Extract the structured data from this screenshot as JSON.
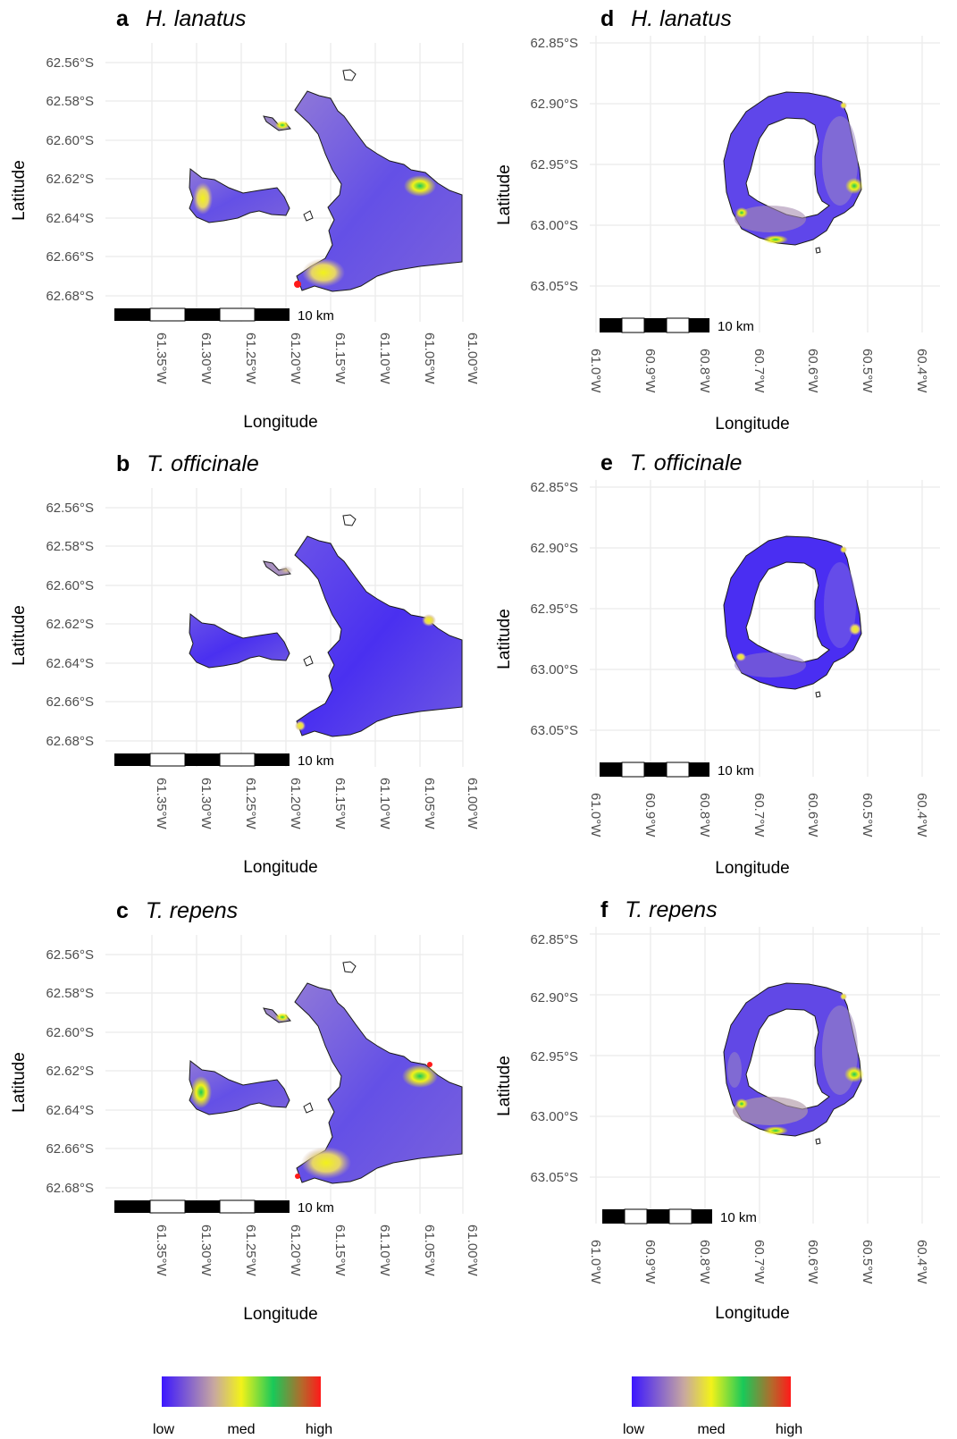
{
  "figure": {
    "panels": [
      {
        "letter": "a",
        "species": "H. lanatus",
        "map": "livingston",
        "ylabels": [
          "62.56°S",
          "62.58°S",
          "62.60°S",
          "62.62°S",
          "62.64°S",
          "62.66°S",
          "62.68°S"
        ],
        "xlabels": [
          "61.35°W",
          "61.30°W",
          "61.25°W",
          "61.20°W",
          "61.15°W",
          "61.10°W",
          "61.05°W",
          "61.00°W"
        ],
        "xlabel": "Longitude",
        "ylabel": "Latitude",
        "scalebar": "10 km",
        "pattern": "strong"
      },
      {
        "letter": "b",
        "species": "T. officinale",
        "map": "livingston",
        "ylabels": [
          "62.56°S",
          "62.58°S",
          "62.60°S",
          "62.62°S",
          "62.64°S",
          "62.66°S",
          "62.68°S"
        ],
        "xlabels": [
          "61.35°W",
          "61.30°W",
          "61.25°W",
          "61.20°W",
          "61.15°W",
          "61.10°W",
          "61.05°W",
          "61.00°W"
        ],
        "xlabel": "Longitude",
        "ylabel": "Latitude",
        "scalebar": "10 km",
        "pattern": "weak"
      },
      {
        "letter": "c",
        "species": "T. repens",
        "map": "livingston",
        "ylabels": [
          "62.56°S",
          "62.58°S",
          "62.60°S",
          "62.62°S",
          "62.64°S",
          "62.66°S",
          "62.68°S"
        ],
        "xlabels": [
          "61.35°W",
          "61.30°W",
          "61.25°W",
          "61.20°W",
          "61.15°W",
          "61.10°W",
          "61.05°W",
          "61.00°W"
        ],
        "xlabel": "Longitude",
        "ylabel": "Latitude",
        "scalebar": "10 km",
        "pattern": "strong"
      },
      {
        "letter": "d",
        "species": "H. lanatus",
        "map": "deception",
        "ylabels": [
          "62.85°S",
          "62.90°S",
          "62.95°S",
          "63.00°S",
          "63.05°S"
        ],
        "xlabels": [
          "61.0°W",
          "60.9°W",
          "60.8°W",
          "60.7°W",
          "60.6°W",
          "60.5°W",
          "60.4°W"
        ],
        "xlabel": "Longitude",
        "ylabel": "Latitude",
        "scalebar": "10 km",
        "pattern": "strong"
      },
      {
        "letter": "e",
        "species": "T. officinale",
        "map": "deception",
        "ylabels": [
          "62.85°S",
          "62.90°S",
          "62.95°S",
          "63.00°S",
          "63.05°S"
        ],
        "xlabels": [
          "61.0°W",
          "60.9°W",
          "60.8°W",
          "60.7°W",
          "60.6°W",
          "60.5°W",
          "60.4°W"
        ],
        "xlabel": "Longitude",
        "ylabel": "Latitude",
        "scalebar": "10 km",
        "pattern": "weak"
      },
      {
        "letter": "f",
        "species": "T. repens",
        "map": "deception",
        "ylabels": [
          "62.85°S",
          "62.90°S",
          "62.95°S",
          "63.00°S",
          "63.05°S"
        ],
        "xlabels": [
          "61.0°W",
          "60.9°W",
          "60.8°W",
          "60.7°W",
          "60.6°W",
          "60.5°W",
          "60.4°W"
        ],
        "xlabel": "Longitude",
        "ylabel": "Latitude",
        "scalebar": "10 km",
        "pattern": "strong"
      }
    ],
    "legends": [
      {
        "labels": [
          "low",
          "med",
          "high"
        ]
      },
      {
        "labels": [
          "low",
          "med",
          "high"
        ]
      }
    ],
    "colorscale": [
      "#3b16ff",
      "#7c5ae0",
      "#c8a8a0",
      "#f2f21a",
      "#19c959",
      "#b46a2b",
      "#ff1a1a"
    ]
  }
}
